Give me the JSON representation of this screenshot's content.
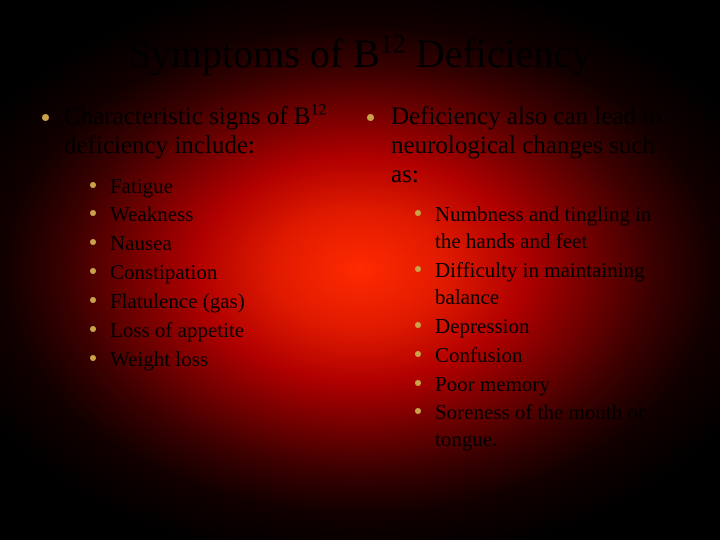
{
  "accent_color": "#c9a24a",
  "title_pre": "Symptoms of B",
  "title_sup": "12",
  "title_post": " Deficiency",
  "left": {
    "lead_pre": "Characteristic signs of B",
    "lead_sup": "12",
    "lead_post": " deficiency include:",
    "items": [
      "Fatigue",
      "Weakness",
      "Nausea",
      "Constipation",
      "Flatulence (gas)",
      "Loss of appetite",
      "Weight loss"
    ]
  },
  "right": {
    "lead": "Deficiency also can lead to neurological changes such as:",
    "items": [
      "Numbness and tingling in the hands and feet",
      "Difficulty in maintaining balance",
      "Depression",
      "Confusion",
      "Poor memory",
      "Soreness of the mouth or tongue."
    ]
  }
}
